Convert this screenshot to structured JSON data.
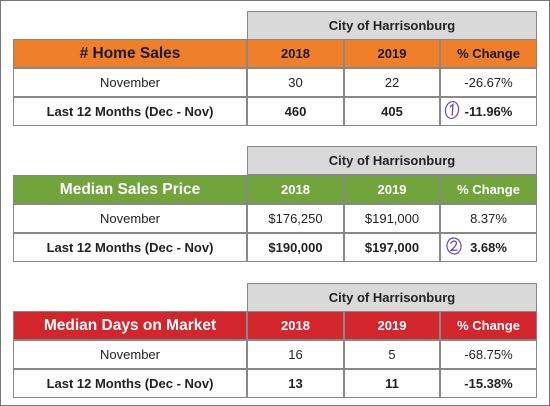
{
  "tables": [
    {
      "city": "City of Harrisonburg",
      "metric": "# Home Sales",
      "columns": [
        "2018",
        "2019",
        "% Change"
      ],
      "rows": [
        {
          "label": "November",
          "v2018": "30",
          "v2019": "22",
          "change": "-26.67%"
        },
        {
          "label": "Last 12 Months (Dec - Nov)",
          "v2018": "460",
          "v2019": "405",
          "change": "-11.96%"
        }
      ],
      "accent": "#f07f2a",
      "annotation_number": "1"
    },
    {
      "city": "City of Harrisonburg",
      "metric": "Median Sales Price",
      "columns": [
        "2018",
        "2019",
        "% Change"
      ],
      "rows": [
        {
          "label": "November",
          "v2018": "$176,250",
          "v2019": "$191,000",
          "change": "8.37%"
        },
        {
          "label": "Last 12 Months (Dec - Nov)",
          "v2018": "$190,000",
          "v2019": "$197,000",
          "change": "3.68%"
        }
      ],
      "accent": "#71a43a",
      "annotation_number": "2"
    },
    {
      "city": "City of Harrisonburg",
      "metric": "Median Days on Market",
      "columns": [
        "2018",
        "2019",
        "% Change"
      ],
      "rows": [
        {
          "label": "November",
          "v2018": "16",
          "v2019": "5",
          "change": "-68.75%"
        },
        {
          "label": "Last 12 Months (Dec - Nov)",
          "v2018": "13",
          "v2019": "11",
          "change": "-15.38%"
        }
      ],
      "accent": "#d3262c"
    }
  ]
}
